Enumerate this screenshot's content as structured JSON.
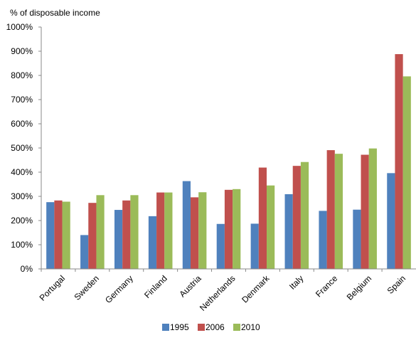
{
  "chart_data": {
    "type": "bar",
    "ylabel": "% of disposable income",
    "ylim": [
      0,
      1000
    ],
    "yticks": [
      "0%",
      "100%",
      "200%",
      "300%",
      "400%",
      "500%",
      "600%",
      "700%",
      "800%",
      "900%",
      "1000%"
    ],
    "grid": false,
    "legend_position": "bottom",
    "categories": [
      "Portugal",
      "Sweden",
      "Germany",
      "Finland",
      "Austria",
      "Netherlands",
      "Denmark",
      "Italy",
      "France",
      "Belgium",
      "Spain"
    ],
    "series": [
      {
        "name": "1995",
        "color": "#4F81BD",
        "values": [
          276,
          140,
          244,
          218,
          363,
          186,
          187,
          309,
          240,
          245,
          396
        ]
      },
      {
        "name": "2006",
        "color": "#C0504D",
        "values": [
          283,
          273,
          283,
          316,
          296,
          327,
          419,
          426,
          491,
          472,
          888
        ]
      },
      {
        "name": "2010",
        "color": "#9BBB59",
        "values": [
          278,
          305,
          305,
          316,
          317,
          330,
          345,
          442,
          476,
          498,
          796
        ]
      }
    ]
  }
}
